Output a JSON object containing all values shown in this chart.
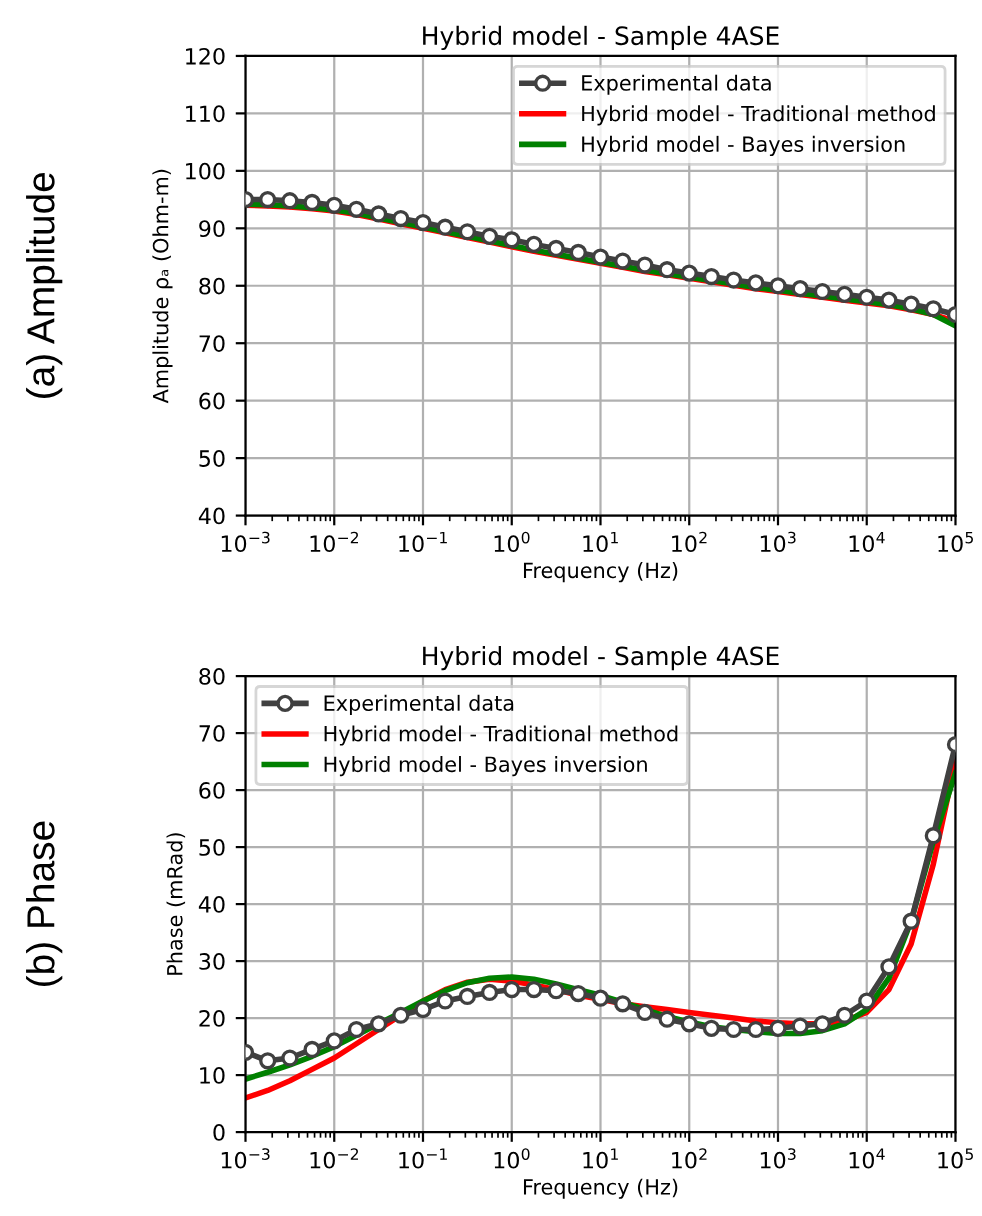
{
  "chart_data": [
    {
      "type": "line",
      "title": "Hybrid model - Sample 4ASE",
      "xlabel": "Frequency (Hz)",
      "ylabel": "Amplitude ρₐ (Ohm-m)",
      "annotations": [
        "(a) Amplitude"
      ],
      "log": "x",
      "grid": true,
      "legend": "top right",
      "xlim": [
        0.001,
        100000
      ],
      "ylim": [
        40,
        120
      ],
      "yticks": [
        40,
        50,
        60,
        70,
        80,
        90,
        100,
        110,
        120
      ],
      "xticks": [
        {
          "value": 0.001,
          "label": "10$^{−3}$"
        },
        {
          "value": 0.01,
          "label": "10$^{−2}$"
        },
        {
          "value": 0.1,
          "label": "10$^{−1}$"
        },
        {
          "value": 1,
          "label": "10$^{0}$"
        },
        {
          "value": 10,
          "label": "10$^{1}$"
        },
        {
          "value": 100,
          "label": "10$^{2}$"
        },
        {
          "value": 1000,
          "label": "10$^{3}$"
        },
        {
          "value": 10000,
          "label": "10$^{4}$"
        },
        {
          "value": 100000,
          "label": "10$^{5}$"
        }
      ],
      "x": [
        0.001,
        0.001778,
        0.003162,
        0.005623,
        0.01,
        0.01778,
        0.03162,
        0.05623,
        0.1,
        0.1778,
        0.3162,
        0.5623,
        1,
        1.778,
        3.162,
        5.623,
        10,
        17.78,
        31.62,
        56.23,
        100,
        177.8,
        316.2,
        562.3,
        1000,
        1778,
        3162,
        5623,
        10000,
        17780,
        31620,
        56230,
        100000
      ],
      "series": [
        {
          "name": "Experimental data",
          "color": "#404040",
          "marker": "circle",
          "values": [
            95,
            95,
            94.8,
            94.5,
            94,
            93.3,
            92.5,
            91.7,
            91,
            90.2,
            89.4,
            88.6,
            88,
            87.2,
            86.5,
            85.8,
            85,
            84.3,
            83.6,
            82.8,
            82.2,
            81.6,
            81,
            80.5,
            80,
            79.5,
            79,
            78.5,
            78,
            77.5,
            76.8,
            76,
            75
          ]
        },
        {
          "name": "Hybrid model - Traditional method",
          "color": "#ff0000",
          "marker": "none",
          "values": [
            94,
            93.9,
            93.7,
            93.4,
            93,
            92.4,
            91.6,
            90.8,
            90,
            89.2,
            88.4,
            87.6,
            86.8,
            86,
            85.3,
            84.6,
            83.9,
            83.2,
            82.5,
            81.9,
            81.3,
            80.7,
            80.1,
            79.5,
            79,
            78.5,
            78,
            77.5,
            77,
            76.5,
            75.8,
            75,
            73.8
          ]
        },
        {
          "name": "Hybrid model - Bayes inversion",
          "color": "#008000",
          "marker": "none",
          "values": [
            94.2,
            94.1,
            93.9,
            93.6,
            93.2,
            92.6,
            91.8,
            91,
            90.2,
            89.4,
            88.6,
            87.8,
            87,
            86.2,
            85.5,
            84.8,
            84.1,
            83.4,
            82.7,
            82.1,
            81.5,
            80.9,
            80.3,
            79.7,
            79.2,
            78.7,
            78.2,
            77.7,
            77.2,
            76.7,
            76,
            75,
            73
          ]
        }
      ]
    },
    {
      "type": "line",
      "title": "Hybrid model - Sample 4ASE",
      "xlabel": "Frequency (Hz)",
      "ylabel": "Phase (mRad)",
      "annotations": [
        "(b) Phase"
      ],
      "log": "x",
      "grid": true,
      "legend": "top left",
      "xlim": [
        0.001,
        100000
      ],
      "ylim": [
        0,
        80
      ],
      "yticks": [
        0,
        10,
        20,
        30,
        40,
        50,
        60,
        70,
        80
      ],
      "xticks": [
        {
          "value": 0.001,
          "label": "10$^{−3}$"
        },
        {
          "value": 0.01,
          "label": "10$^{−2}$"
        },
        {
          "value": 0.1,
          "label": "10$^{−1}$"
        },
        {
          "value": 1,
          "label": "10$^{0}$"
        },
        {
          "value": 10,
          "label": "10$^{1}$"
        },
        {
          "value": 100,
          "label": "10$^{2}$"
        },
        {
          "value": 1000,
          "label": "10$^{3}$"
        },
        {
          "value": 10000,
          "label": "10$^{4}$"
        },
        {
          "value": 100000,
          "label": "10$^{5}$"
        }
      ],
      "x": [
        0.001,
        0.001778,
        0.003162,
        0.005623,
        0.01,
        0.01778,
        0.03162,
        0.05623,
        0.1,
        0.1778,
        0.3162,
        0.5623,
        1,
        1.778,
        3.162,
        5.623,
        10,
        17.78,
        31.62,
        56.23,
        100,
        177.8,
        316.2,
        562.3,
        1000,
        1778,
        3162,
        5623,
        10000,
        17780,
        31620,
        56230,
        100000
      ],
      "series": [
        {
          "name": "Experimental data",
          "color": "#404040",
          "marker": "circle",
          "values": [
            14,
            12.5,
            13,
            14.5,
            16,
            18,
            19,
            20.5,
            21.5,
            23,
            23.8,
            24.5,
            25,
            25,
            24.8,
            24.3,
            23.5,
            22.5,
            21,
            19.8,
            19,
            18.2,
            18,
            18,
            18.2,
            18.6,
            19,
            20.5,
            23,
            29,
            37,
            52,
            68
          ]
        },
        {
          "name": "Hybrid model - Traditional method",
          "color": "#ff0000",
          "marker": "none",
          "values": [
            6,
            7.3,
            9,
            11,
            13,
            15.5,
            18,
            20.5,
            23,
            25,
            26.3,
            26.8,
            26.5,
            25.8,
            25,
            24,
            23.3,
            22.5,
            22,
            21.5,
            21,
            20.5,
            20,
            19.5,
            19.2,
            19,
            19,
            19.5,
            21,
            25,
            33,
            47,
            65
          ]
        },
        {
          "name": "Hybrid model - Bayes inversion",
          "color": "#008000",
          "marker": "none",
          "values": [
            9.3,
            10.5,
            11.8,
            13.3,
            15,
            17,
            19,
            21,
            23,
            24.8,
            26.2,
            27,
            27.2,
            26.8,
            26,
            25,
            24,
            22.8,
            21.5,
            20.3,
            19.3,
            18.5,
            18,
            17.6,
            17.3,
            17.3,
            17.8,
            19,
            21.5,
            27,
            37,
            51,
            63
          ]
        }
      ]
    }
  ]
}
